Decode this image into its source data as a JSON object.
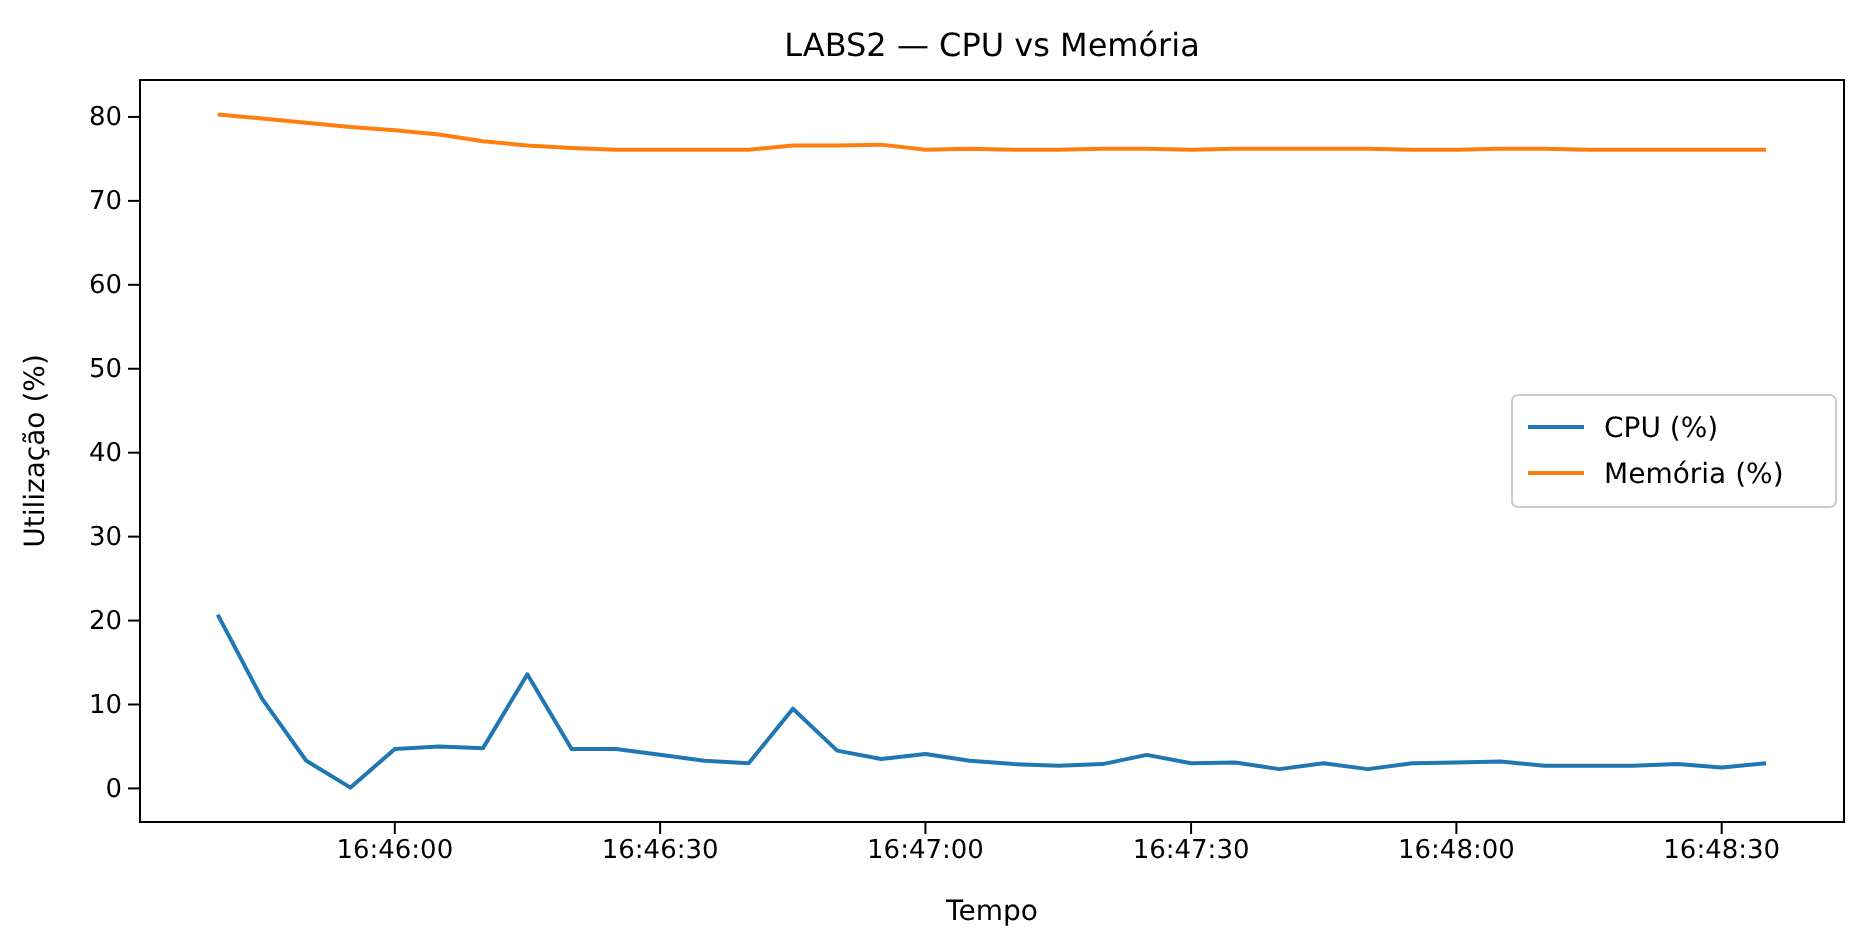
{
  "chart_data": {
    "type": "line",
    "title": "LABS2 — CPU vs Memória",
    "xlabel": "Tempo",
    "ylabel": "Utilização (%)",
    "x": [
      16.76111,
      16.7625,
      16.76389,
      16.76528,
      16.76667,
      16.76806,
      16.76944,
      16.77083,
      16.77222,
      16.77361,
      16.775,
      16.77639,
      16.77778,
      16.77917,
      16.78056,
      16.78194,
      16.78333,
      16.78472,
      16.78611,
      16.7875,
      16.78889,
      16.79028,
      16.79167,
      16.79306,
      16.79444,
      16.79583,
      16.79722,
      16.79861,
      16.8,
      16.80139,
      16.80278,
      16.80417,
      16.80556,
      16.80694,
      16.80833,
      16.80972
    ],
    "series": [
      {
        "name": "CPU (%)",
        "color": "#1f77b4",
        "values": [
          20.7,
          10.7,
          3.3,
          0.1,
          4.7,
          5.0,
          4.8,
          13.6,
          4.7,
          4.7,
          4.0,
          3.3,
          3.0,
          9.5,
          4.5,
          3.5,
          4.1,
          3.3,
          2.9,
          2.7,
          2.9,
          4.0,
          3.0,
          3.1,
          2.3,
          3.0,
          2.3,
          3.0,
          3.1,
          3.2,
          2.7,
          2.7,
          2.7,
          2.9,
          2.5,
          3.0
        ]
      },
      {
        "name": "Memória (%)",
        "color": "#ff7f0e",
        "values": [
          80.3,
          79.8,
          79.3,
          78.8,
          78.4,
          77.9,
          77.1,
          76.6,
          76.3,
          76.1,
          76.1,
          76.1,
          76.1,
          76.6,
          76.6,
          76.7,
          76.1,
          76.2,
          76.1,
          76.1,
          76.2,
          76.2,
          76.1,
          76.2,
          76.2,
          76.2,
          76.2,
          76.1,
          76.1,
          76.2,
          76.2,
          76.1,
          76.1,
          76.1,
          76.1,
          76.1
        ]
      }
    ],
    "xlim": [
      16.75867,
      16.81217
    ],
    "xticks": [
      {
        "value": 16.76667,
        "label": "16:46:00"
      },
      {
        "value": 16.775,
        "label": "16:46:30"
      },
      {
        "value": 16.78333,
        "label": "16:47:00"
      },
      {
        "value": 16.79167,
        "label": "16:47:30"
      },
      {
        "value": 16.8,
        "label": "16:48:00"
      },
      {
        "value": 16.80833,
        "label": "16:48:30"
      }
    ],
    "ylim": [
      -4,
      84.4
    ],
    "yticks": [
      0,
      10,
      20,
      30,
      40,
      50,
      60,
      70,
      80
    ],
    "grid": false,
    "legend": "right",
    "marker": "none",
    "line_style": "solid"
  }
}
